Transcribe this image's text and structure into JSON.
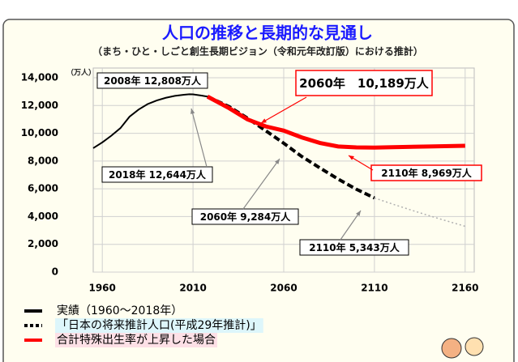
{
  "chart_data": {
    "type": "line",
    "title": "人口の推移と長期的な見通し",
    "subtitle": "（まち・ひと・しごと創生長期ビジョン（令和元年改訂版）における推計）",
    "y_unit": "（万人）",
    "xlim": [
      1955,
      2165
    ],
    "ylim": [
      0,
      14000
    ],
    "xticks": [
      1960,
      2010,
      2060,
      2110,
      2160
    ],
    "yticks": [
      0,
      {
        "value": 2000,
        "label": "2,000"
      },
      {
        "value": 4000,
        "label": "4,000"
      },
      {
        "value": 6000,
        "label": "6,000"
      },
      {
        "value": 8000,
        "label": "8,000"
      },
      {
        "value": 10000,
        "label": "10,000"
      },
      {
        "value": 12000,
        "label": "12,000"
      },
      {
        "value": 14000,
        "label": "14,000"
      }
    ],
    "grid": true,
    "series": [
      {
        "name": "実績（1960～2018年）",
        "color": "#000000",
        "dash": "solid",
        "legend_bg": "#ffffff",
        "x": [
          1955,
          1960,
          1965,
          1970,
          1975,
          1980,
          1985,
          1990,
          1995,
          2000,
          2005,
          2008,
          2010,
          2015,
          2018
        ],
        "values": [
          8928,
          9342,
          9828,
          10372,
          11194,
          11706,
          12105,
          12361,
          12557,
          12693,
          12777,
          12808,
          12806,
          12709,
          12644
        ]
      },
      {
        "name": "「日本の将来推計人口(平成29年推計)」",
        "color": "#000000",
        "dash": "dashed",
        "legend_bg": "#ddf6fb",
        "x": [
          2018,
          2030,
          2040,
          2050,
          2060,
          2070,
          2080,
          2090,
          2100,
          2110
        ],
        "values": [
          12644,
          11913,
          11092,
          10192,
          9284,
          8323,
          7500,
          6700,
          5972,
          5343
        ]
      },
      {
        "color": "#b0b0b0",
        "dash": "dotted",
        "x": [
          2110,
          2120,
          2130,
          2140,
          2150,
          2160
        ],
        "values": [
          5343,
          4900,
          4480,
          4070,
          3680,
          3300
        ]
      },
      {
        "name": "合計特殊出生率が上昇した場合",
        "color": "#ff0000",
        "dash": "solid",
        "legend_bg": "#fde0e6",
        "x": [
          2018,
          2030,
          2040,
          2050,
          2060,
          2070,
          2080,
          2090,
          2100,
          2110,
          2120,
          2140,
          2160
        ],
        "values": [
          12644,
          11800,
          11000,
          10500,
          10189,
          9700,
          9300,
          9050,
          8980,
          8969,
          9000,
          9050,
          9100
        ]
      }
    ],
    "annotations": [
      {
        "text": "2008年 12,808万人",
        "border": "#000000"
      },
      {
        "text": "2060年　10,189万人",
        "border": "#ff0000"
      },
      {
        "text": "2018年 12,644万人",
        "border": "#000000"
      },
      {
        "text": "2110年 8,969万人",
        "border": "#ff0000"
      },
      {
        "text": "2060年 9,284万人",
        "border": "#000000"
      },
      {
        "text": "2110年 5,343万人",
        "border": "#000000"
      }
    ]
  }
}
